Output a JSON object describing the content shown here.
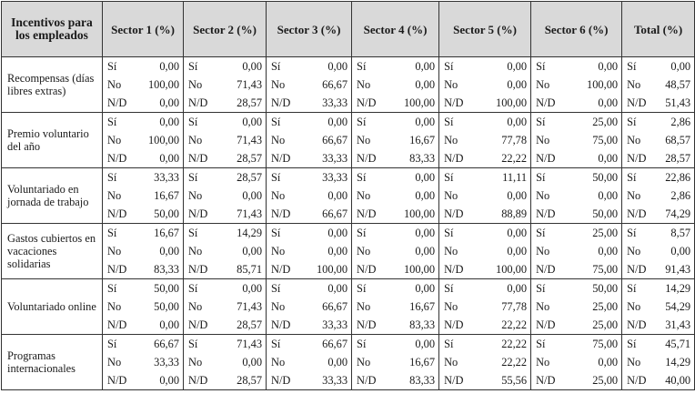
{
  "header": {
    "first": "Incentivos para los empleados",
    "sectors": [
      "Sector 1 (%)",
      "Sector 2 (%)",
      "Sector 3 (%)",
      "Sector 4 (%)",
      "Sector 5 (%)",
      "Sector 6 (%)",
      "Total (%)"
    ]
  },
  "keys": [
    "Sí",
    "No",
    "N/D"
  ],
  "rows": [
    {
      "label": "Recompensas (días libres extras)",
      "values": [
        [
          "0,00",
          "0,00",
          "0,00",
          "0,00",
          "0,00",
          "0,00",
          "0,00"
        ],
        [
          "100,00",
          "71,43",
          "66,67",
          "0,00",
          "0,00",
          "100,00",
          "48,57"
        ],
        [
          "0,00",
          "28,57",
          "33,33",
          "100,00",
          "100,00",
          "0,00",
          "51,43"
        ]
      ]
    },
    {
      "label": "Premio voluntario del año",
      "values": [
        [
          "0,00",
          "0,00",
          "0,00",
          "0,00",
          "0,00",
          "25,00",
          "2,86"
        ],
        [
          "100,00",
          "71,43",
          "66,67",
          "16,67",
          "77,78",
          "75,00",
          "68,57"
        ],
        [
          "0,00",
          "28,57",
          "33,33",
          "83,33",
          "22,22",
          "0,00",
          "28,57"
        ]
      ]
    },
    {
      "label": "Voluntariado en jornada de trabajo",
      "values": [
        [
          "33,33",
          "28,57",
          "33,33",
          "0,00",
          "11,11",
          "50,00",
          "22,86"
        ],
        [
          "16,67",
          "0,00",
          "0,00",
          "0,00",
          "0,00",
          "0,00",
          "2,86"
        ],
        [
          "50,00",
          "71,43",
          "66,67",
          "100,00",
          "88,89",
          "50,00",
          "74,29"
        ]
      ]
    },
    {
      "label": "Gastos cubiertos en vacaciones solidarias",
      "values": [
        [
          "16,67",
          "14,29",
          "0,00",
          "0,00",
          "0,00",
          "25,00",
          "8,57"
        ],
        [
          "0,00",
          "0,00",
          "0,00",
          "0,00",
          "0,00",
          "0,00",
          "0,00"
        ],
        [
          "83,33",
          "85,71",
          "100,00",
          "100,00",
          "100,00",
          "75,00",
          "91,43"
        ]
      ]
    },
    {
      "label": "Voluntariado online",
      "values": [
        [
          "50,00",
          "0,00",
          "0,00",
          "0,00",
          "0,00",
          "50,00",
          "14,29"
        ],
        [
          "50,00",
          "71,43",
          "66,67",
          "16,67",
          "77,78",
          "25,00",
          "54,29"
        ],
        [
          "0,00",
          "28,57",
          "33,33",
          "83,33",
          "22,22",
          "25,00",
          "31,43"
        ]
      ]
    },
    {
      "label": "Programas internacionales",
      "values": [
        [
          "66,67",
          "71,43",
          "66,67",
          "0,00",
          "22,22",
          "75,00",
          "45,71"
        ],
        [
          "33,33",
          "0,00",
          "0,00",
          "16,67",
          "22,22",
          "0,00",
          "14,29"
        ],
        [
          "0,00",
          "28,57",
          "33,33",
          "83,33",
          "55,56",
          "25,00",
          "40,00"
        ]
      ]
    }
  ]
}
